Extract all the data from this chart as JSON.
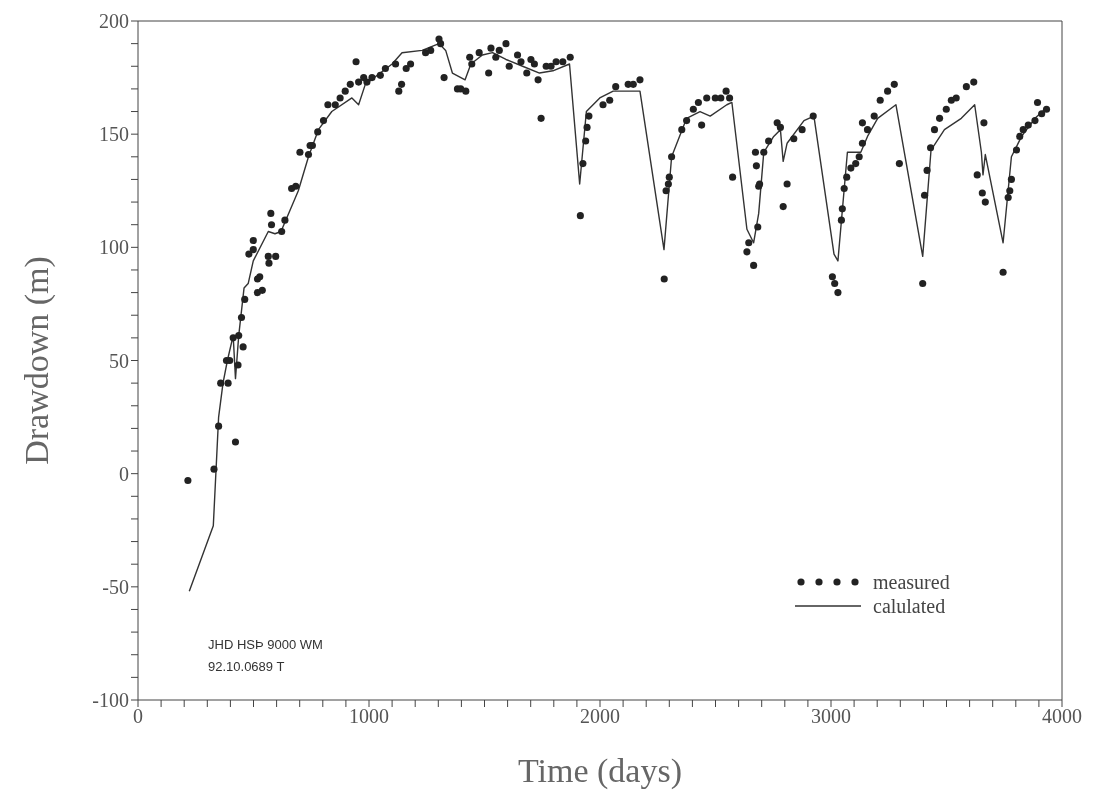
{
  "chart_data": {
    "type": "scatter",
    "xlabel": "Time (days)",
    "ylabel": "Drawdown (m)",
    "xlim": [
      0,
      4000
    ],
    "ylim": [
      -100,
      200
    ],
    "xticks": [
      0,
      {
        "value": 100,
        "label": null
      },
      {
        "value": 200,
        "label": null
      },
      {
        "value": 300,
        "label": null
      },
      {
        "value": 400,
        "label": null
      },
      {
        "value": 500,
        "label": null
      },
      {
        "value": 600,
        "label": null
      },
      {
        "value": 700,
        "label": null
      },
      {
        "value": 800,
        "label": null
      },
      {
        "value": 900,
        "label": null
      },
      1000,
      {
        "value": 1100,
        "label": null
      },
      {
        "value": 1200,
        "label": null
      },
      {
        "value": 1300,
        "label": null
      },
      {
        "value": 1400,
        "label": null
      },
      {
        "value": 1500,
        "label": null
      },
      {
        "value": 1600,
        "label": null
      },
      {
        "value": 1700,
        "label": null
      },
      {
        "value": 1800,
        "label": null
      },
      {
        "value": 1900,
        "label": null
      },
      2000,
      {
        "value": 2100,
        "label": null
      },
      {
        "value": 2200,
        "label": null
      },
      {
        "value": 2300,
        "label": null
      },
      {
        "value": 2400,
        "label": null
      },
      {
        "value": 2500,
        "label": null
      },
      {
        "value": 2600,
        "label": null
      },
      {
        "value": 2700,
        "label": null
      },
      {
        "value": 2800,
        "label": null
      },
      {
        "value": 2900,
        "label": null
      },
      3000,
      {
        "value": 3100,
        "label": null
      },
      {
        "value": 3200,
        "label": null
      },
      {
        "value": 3300,
        "label": null
      },
      {
        "value": 3400,
        "label": null
      },
      {
        "value": 3500,
        "label": null
      },
      {
        "value": 3600,
        "label": null
      },
      {
        "value": 3700,
        "label": null
      },
      {
        "value": 3800,
        "label": null
      },
      {
        "value": 3900,
        "label": null
      },
      4000
    ],
    "yticks": [
      -100,
      {
        "value": -90,
        "label": null
      },
      {
        "value": -80,
        "label": null
      },
      {
        "value": -70,
        "label": null
      },
      {
        "value": -60,
        "label": null
      },
      -50,
      {
        "value": -40,
        "label": null
      },
      {
        "value": -30,
        "label": null
      },
      {
        "value": -20,
        "label": null
      },
      {
        "value": -10,
        "label": null
      },
      0,
      {
        "value": 10,
        "label": null
      },
      {
        "value": 20,
        "label": null
      },
      {
        "value": 30,
        "label": null
      },
      {
        "value": 40,
        "label": null
      },
      50,
      {
        "value": 60,
        "label": null
      },
      {
        "value": 70,
        "label": null
      },
      {
        "value": 80,
        "label": null
      },
      {
        "value": 90,
        "label": null
      },
      100,
      {
        "value": 110,
        "label": null
      },
      {
        "value": 120,
        "label": null
      },
      {
        "value": 130,
        "label": null
      },
      {
        "value": 140,
        "label": null
      },
      150,
      {
        "value": 160,
        "label": null
      },
      {
        "value": 170,
        "label": null
      },
      {
        "value": 180,
        "label": null
      },
      {
        "value": 190,
        "label": null
      },
      200
    ],
    "grid": false,
    "legend": "bottom right",
    "annotations": [
      "JHD HSÞ 9000 WM",
      "92.10.0689 T"
    ],
    "series": [
      {
        "name": "measured",
        "marker": "circle",
        "color": "#222222",
        "x": [
          216,
          329,
          349,
          358,
          390,
          383,
          397,
          412,
          436,
          433,
          455,
          422,
          448,
          462,
          517,
          527,
          517,
          538,
          480,
          499,
          499,
          564,
          567,
          596,
          575,
          578,
          622,
          636,
          665,
          683,
          701,
          738,
          745,
          755,
          778,
          803,
          822,
          854,
          875,
          897,
          919,
          944,
          955,
          977,
          991,
          1013,
          1049,
          1071,
          1115,
          1129,
          1141,
          1161,
          1180,
          1245,
          1267,
          1303,
          1310,
          1325,
          1383,
          1397,
          1419,
          1436,
          1445,
          1477,
          1518,
          1528,
          1549,
          1564,
          1593,
          1607,
          1643,
          1658,
          1683,
          1701,
          1716,
          1732,
          1745,
          1767,
          1788,
          1810,
          1839,
          1871,
          1915,
          1926,
          1938,
          1944,
          1952,
          2013,
          2042,
          2068,
          2122,
          2144,
          2173,
          2278,
          2286,
          2296,
          2300,
          2310,
          2354,
          2375,
          2404,
          2426,
          2440,
          2462,
          2499,
          2523,
          2546,
          2561,
          2574,
          2636,
          2644,
          2665,
          2673,
          2677,
          2687,
          2683,
          2691,
          2709,
          2730,
          2767,
          2781,
          2793,
          2810,
          2839,
          2875,
          2923,
          3006,
          3016,
          3030,
          3045,
          3049,
          3057,
          3068,
          3086,
          3107,
          3122,
          3136,
          3136,
          3158,
          3187,
          3213,
          3245,
          3274,
          3296,
          3397,
          3405,
          3416,
          3431,
          3448,
          3470,
          3499,
          3521,
          3542,
          3586,
          3618,
          3662,
          3633,
          3655,
          3668,
          3745,
          3767,
          3774,
          3781,
          3803,
          3817,
          3832,
          3854,
          3883,
          3894,
          3912,
          3933
        ],
        "values": [
          -3,
          2,
          21,
          40,
          40,
          50,
          50,
          60,
          61,
          48,
          56,
          14,
          69,
          77,
          86,
          87,
          80,
          81,
          97,
          103,
          99,
          96,
          93,
          96,
          115,
          110,
          107,
          112,
          126,
          127,
          142,
          141,
          145,
          145,
          151,
          156,
          163,
          163,
          166,
          169,
          172,
          182,
          173,
          175,
          173,
          175,
          176,
          179,
          181,
          169,
          172,
          179,
          181,
          186,
          187,
          192,
          190,
          175,
          170,
          170,
          169,
          184,
          181,
          186,
          177,
          188,
          184,
          187,
          190,
          180,
          185,
          182,
          177,
          183,
          181,
          174,
          157,
          180,
          180,
          182,
          182,
          184,
          114,
          137,
          147,
          153,
          158,
          163,
          165,
          171,
          172,
          172,
          174,
          86,
          125,
          128,
          131,
          140,
          152,
          156,
          161,
          164,
          154,
          166,
          166,
          166,
          169,
          166,
          131,
          98,
          102,
          92,
          142,
          136,
          127,
          109,
          128,
          142,
          147,
          155,
          153,
          118,
          128,
          148,
          152,
          158,
          87,
          84,
          80,
          112,
          117,
          126,
          131,
          135,
          137,
          140,
          146,
          155,
          152,
          158,
          165,
          169,
          172,
          137,
          84,
          123,
          134,
          144,
          152,
          157,
          161,
          165,
          166,
          171,
          173,
          155,
          132,
          124,
          120,
          89,
          122,
          125,
          130,
          143,
          149,
          152,
          154,
          156,
          164,
          159,
          161
        ]
      },
      {
        "name": "calulated",
        "type": "line",
        "line_style": "solid",
        "color": "#333333",
        "x": [
          222,
          326,
          349,
          368,
          387,
          412,
          422,
          436,
          459,
          477,
          499,
          564,
          593,
          619,
          694,
          738,
          781,
          839,
          926,
          955,
          984,
          1100,
          1143,
          1230,
          1303,
          1332,
          1361,
          1416,
          1441,
          1491,
          1535,
          1593,
          1665,
          1738,
          1796,
          1868,
          1912,
          1941,
          1999,
          2057,
          2173,
          2277,
          2310,
          2375,
          2433,
          2477,
          2549,
          2571,
          2636,
          2665,
          2687,
          2709,
          2752,
          2781,
          2793,
          2810,
          2883,
          2926,
          3013,
          3030,
          3071,
          3129,
          3158,
          3202,
          3281,
          3397,
          3433,
          3491,
          3564,
          3622,
          3651,
          3658,
          3668,
          3745,
          3781,
          3825,
          3883,
          3926
        ],
        "values": [
          -52,
          -23,
          25,
          40,
          50,
          61,
          42,
          61,
          82,
          84,
          94,
          107,
          106,
          107,
          125,
          140,
          152,
          160,
          166,
          163,
          172,
          181,
          186,
          187,
          190,
          187,
          177,
          174,
          181,
          185,
          186,
          183,
          180,
          177,
          178,
          181,
          128,
          160,
          166,
          169,
          169,
          99,
          140,
          157,
          160,
          158,
          163,
          164,
          108,
          102,
          115,
          142,
          149,
          152,
          138,
          146,
          156,
          158,
          97,
          94,
          142,
          142,
          149,
          157,
          163,
          96,
          143,
          152,
          157,
          163,
          142,
          132,
          141,
          102,
          140,
          149,
          157,
          161
        ]
      }
    ]
  }
}
